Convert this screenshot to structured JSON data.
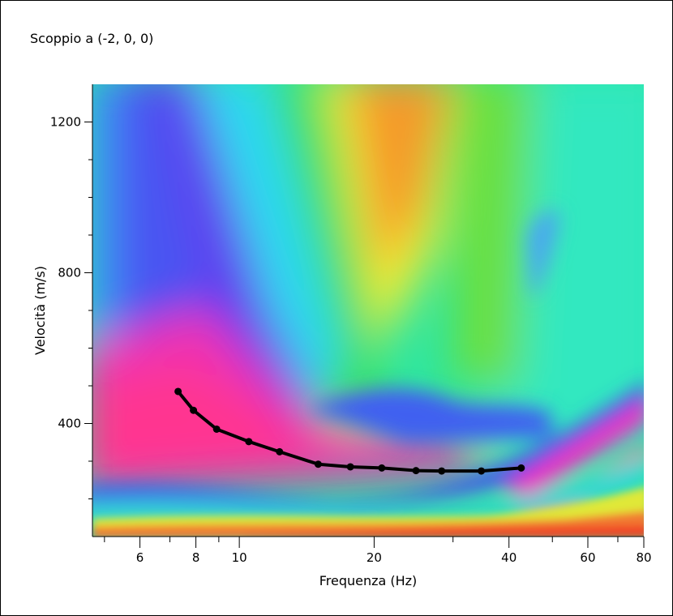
{
  "chart_data": {
    "type": "line",
    "title": "Scoppio a (-2, 0, 0)",
    "xlabel": "Frequenza (Hz)",
    "ylabel": "Velocità (m/s)",
    "x_scale": "log",
    "xlim": [
      4.7,
      80
    ],
    "ylim": [
      100,
      1300
    ],
    "x_ticks_labeled": [
      6,
      8,
      10,
      20,
      40,
      60,
      80
    ],
    "x_ticks_minor": [
      5,
      7,
      9,
      30,
      50,
      70
    ],
    "y_ticks_labeled": [
      400,
      800,
      1200
    ],
    "y_ticks_minor": [
      200,
      300,
      500,
      600,
      700,
      900,
      1000,
      1100
    ],
    "background": "velocity-frequency dispersion spectrum (colour map)",
    "series": [
      {
        "color": "#000000",
        "x": [
          7.3,
          7.9,
          8.9,
          10.5,
          12.3,
          15.0,
          17.7,
          20.8,
          24.8,
          28.3,
          34.7,
          42.6
        ],
        "y": [
          485,
          435,
          385,
          352,
          325,
          292,
          285,
          282,
          275,
          274,
          274,
          282
        ]
      }
    ]
  }
}
